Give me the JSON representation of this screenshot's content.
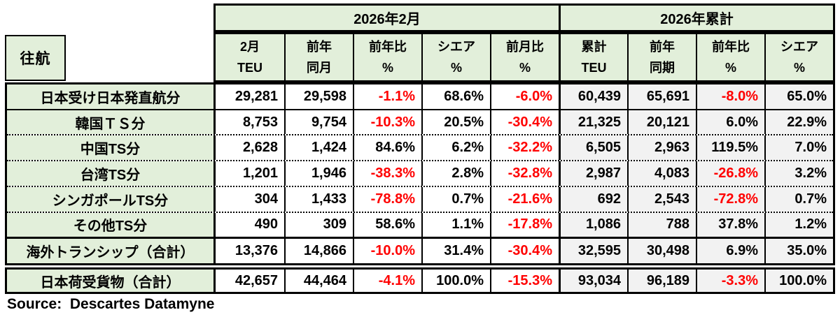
{
  "table": {
    "corner_label": "往航",
    "group_headers": [
      {
        "label": "2026年2月"
      },
      {
        "label": "2026年累計"
      }
    ],
    "columns": [
      {
        "line1": "2月",
        "line2": "TEU"
      },
      {
        "line1": "前年",
        "line2": "同月"
      },
      {
        "line1": "前年比",
        "line2": "%"
      },
      {
        "line1": "シエア",
        "line2": "%"
      },
      {
        "line1": "前月比",
        "line2": "%"
      },
      {
        "line1": "累計",
        "line2": "TEU"
      },
      {
        "line1": "前年",
        "line2": "同期"
      },
      {
        "line1": "前年比",
        "line2": "%"
      },
      {
        "line1": "シエア",
        "line2": "%"
      }
    ],
    "rows": [
      {
        "label": "日本受け日本発直航分",
        "values": [
          "29,281",
          "29,598",
          "-1.1%",
          "68.6%",
          "-6.0%",
          "60,439",
          "65,691",
          "-8.0%",
          "65.0%"
        ]
      },
      {
        "label": "韓国ＴＳ分",
        "values": [
          "8,753",
          "9,754",
          "-10.3%",
          "20.5%",
          "-30.4%",
          "21,325",
          "20,121",
          "6.0%",
          "22.9%"
        ]
      },
      {
        "label": "中国TS分",
        "values": [
          "2,628",
          "1,424",
          "84.6%",
          "6.2%",
          "-32.2%",
          "6,505",
          "2,963",
          "119.5%",
          "7.0%"
        ]
      },
      {
        "label": "台湾TS分",
        "values": [
          "1,201",
          "1,946",
          "-38.3%",
          "2.8%",
          "-32.8%",
          "2,987",
          "4,083",
          "-26.8%",
          "3.2%"
        ]
      },
      {
        "label": "シンガポールTS分",
        "values": [
          "304",
          "1,433",
          "-78.8%",
          "0.7%",
          "-21.6%",
          "692",
          "2,543",
          "-72.8%",
          "0.7%"
        ]
      },
      {
        "label": "その他TS分",
        "values": [
          "490",
          "309",
          "58.6%",
          "1.1%",
          "-17.8%",
          "1,086",
          "788",
          "37.8%",
          "1.2%"
        ]
      },
      {
        "label": "海外トランシップ（合計）",
        "values": [
          "13,376",
          "14,866",
          "-10.0%",
          "31.4%",
          "-30.4%",
          "32,595",
          "30,498",
          "6.9%",
          "35.0%"
        ]
      }
    ],
    "total_row": {
      "label": "日本荷受貨物（合計）",
      "values": [
        "42,657",
        "44,464",
        "-4.1%",
        "100.0%",
        "-15.3%",
        "93,034",
        "96,189",
        "-3.3%",
        "100.0%"
      ]
    }
  },
  "source": "Source:  Descartes Datamyne",
  "colors": {
    "header_green": "#E2EFDA",
    "cumulative_gray": "#F2F2F2",
    "negative_red": "#FF0000",
    "border_black": "#000000"
  }
}
